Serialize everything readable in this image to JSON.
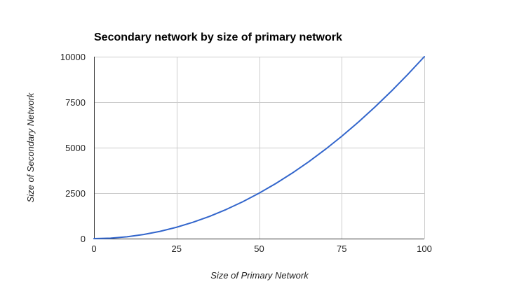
{
  "chart_data": {
    "type": "line",
    "title": "Secondary network by size of primary network",
    "xlabel": "Size of Primary Network",
    "ylabel": "Size of Secondary Network",
    "xlim": [
      0,
      100
    ],
    "ylim": [
      0,
      10000
    ],
    "x_ticks": [
      "0",
      "25",
      "50",
      "75",
      "100"
    ],
    "y_ticks": [
      "0",
      "2500",
      "5000",
      "7500",
      "10000"
    ],
    "x_tick_values": [
      0,
      25,
      50,
      75,
      100
    ],
    "y_tick_values": [
      0,
      2500,
      5000,
      7500,
      10000
    ],
    "grid": true,
    "legend": "none",
    "series": [
      {
        "color": "#3366cc",
        "x": [
          0,
          5,
          10,
          15,
          20,
          25,
          30,
          35,
          40,
          45,
          50,
          55,
          60,
          65,
          70,
          75,
          80,
          85,
          90,
          95,
          100
        ],
        "y": [
          0,
          25,
          100,
          225,
          400,
          625,
          900,
          1225,
          1600,
          2025,
          2500,
          3025,
          3600,
          4225,
          4900,
          5625,
          6400,
          7225,
          8100,
          9025,
          10000
        ]
      }
    ]
  }
}
